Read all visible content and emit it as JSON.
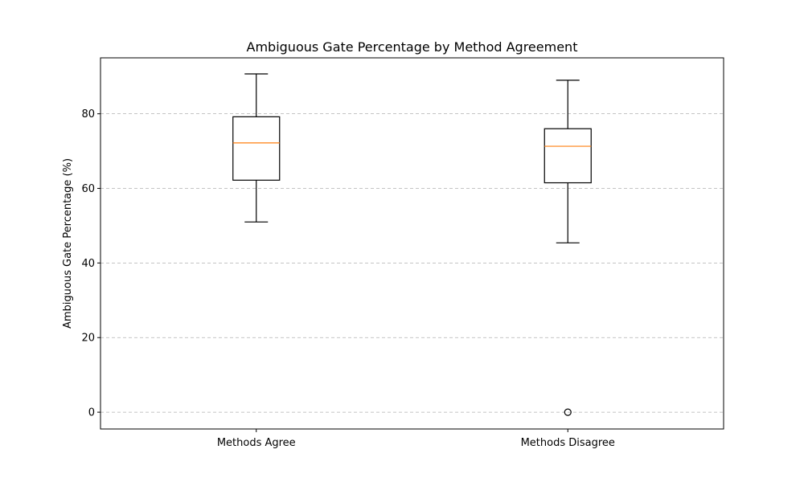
{
  "chart_data": {
    "type": "box",
    "title": "Ambiguous Gate Percentage by Method Agreement",
    "xlabel": "",
    "ylabel": "Ambiguous Gate Percentage (%)",
    "ylim": [
      -4.5,
      95
    ],
    "yticks": [
      0,
      20,
      40,
      60,
      80
    ],
    "grid": {
      "y": true,
      "x": false
    },
    "categories": [
      "Methods Agree",
      "Methods Disagree"
    ],
    "boxes": [
      {
        "category": "Methods Agree",
        "whisker_low": 51,
        "q1": 62.2,
        "median": 72.2,
        "q3": 79.2,
        "whisker_high": 90.7,
        "outliers": []
      },
      {
        "category": "Methods Disagree",
        "whisker_low": 45.4,
        "q1": 61.5,
        "median": 71.3,
        "q3": 76,
        "whisker_high": 89,
        "outliers": [
          0
        ]
      }
    ],
    "colors": {
      "box": "#000000",
      "median": "#ff7f0e",
      "grid": "#b0b0b0"
    }
  }
}
